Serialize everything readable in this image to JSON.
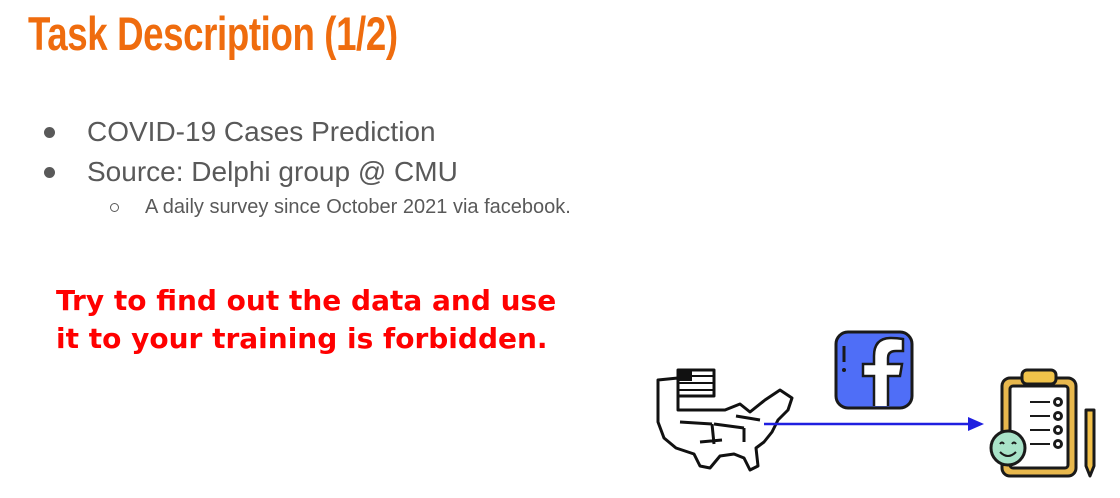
{
  "slide": {
    "title": "Task Description (1/2)",
    "bullets": [
      {
        "text": "COVID-19 Cases Prediction"
      },
      {
        "text": "Source: Delphi group @ CMU"
      }
    ],
    "sub_bullets": [
      {
        "text": "A daily survey since October 2021 via facebook."
      }
    ],
    "warning": {
      "line1": "Try to find out the data and use",
      "line2": "it to your training is forbidden."
    },
    "illustration": {
      "usa_icon": "usa-map-flag-icon",
      "facebook_icon": "facebook-icon",
      "survey_icon": "clipboard-survey-icon",
      "arrow_color": "#1f1fe0",
      "facebook_color": "#4f6ef7"
    },
    "colors": {
      "title": "#ef6c0e",
      "body_text": "#595959",
      "warning": "#ff0000"
    }
  }
}
